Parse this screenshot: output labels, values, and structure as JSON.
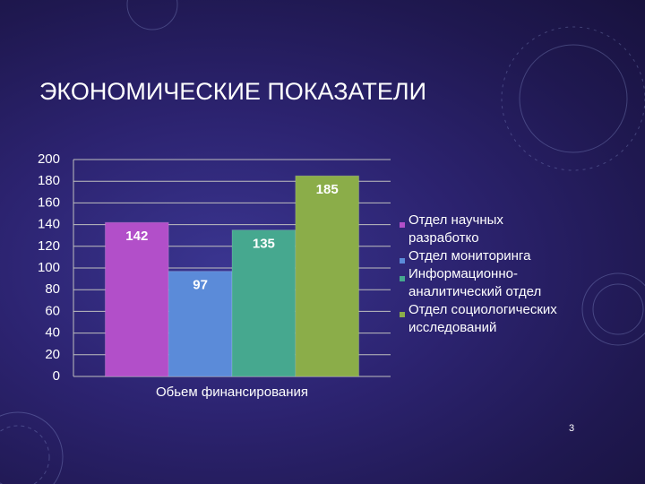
{
  "chart_data": {
    "type": "bar",
    "title": "ЭКОНОМИЧЕСКИЕ ПОКАЗАТЕЛИ",
    "categories": [
      "Обьем финансирования"
    ],
    "series": [
      {
        "name": "Отдел научных разработко",
        "color": "#b24fc9",
        "values": [
          142
        ]
      },
      {
        "name": "Отдел мониторинга",
        "color": "#5b8bd9",
        "values": [
          97
        ]
      },
      {
        "name": "Информационно-аналитический отдел",
        "color": "#46a88f",
        "values": [
          135
        ]
      },
      {
        "name": "Отдел социологических исследований",
        "color": "#8bad49",
        "values": [
          185
        ]
      }
    ],
    "ylim": [
      0,
      200
    ],
    "yticks": [
      0,
      20,
      40,
      60,
      80,
      100,
      120,
      140,
      160,
      180,
      200
    ],
    "grid": true,
    "legend": "right"
  },
  "slide_number": "3"
}
